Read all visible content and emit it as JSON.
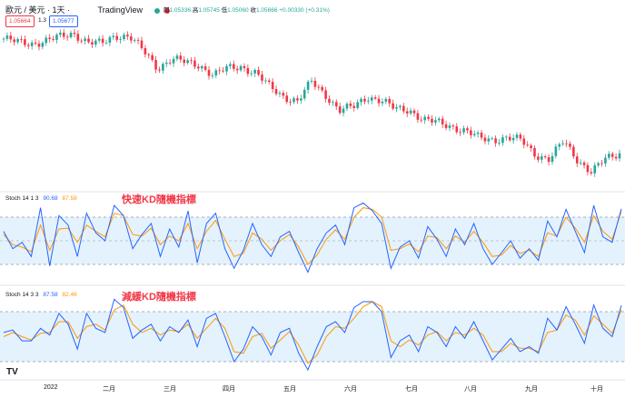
{
  "header": {
    "symbol": "歐元 / 美元 · 1天 ·",
    "brand": "TradingView",
    "ohlc": {
      "open_label": "開",
      "open": "1.05336",
      "high_label": "高",
      "high": "1.05745",
      "low_label": "低",
      "low": "1.05060",
      "close_label": "收",
      "close": "1.05666",
      "change": "+0.00330 (+0.31%)"
    },
    "sell_price": "1.05664",
    "spread": "1.3",
    "buy_price": "1.05677"
  },
  "fast_kd": {
    "label_name": "Stoch",
    "label_params": "14 1 3",
    "k_value": "90.68",
    "d_value": "87.58",
    "title": "快速KD隨機指標"
  },
  "slow_kd": {
    "label_name": "Stoch",
    "label_params": "14 3 3",
    "k_value": "87.58",
    "d_value": "82.46",
    "title": "減緩KD隨機指標"
  },
  "time_axis": [
    "2022",
    "二月",
    "三月",
    "四月",
    "五月",
    "六月",
    "七月",
    "八月",
    "九月",
    "十月"
  ],
  "colors": {
    "up": "#26a69a",
    "down": "#f23645",
    "k_line": "#2962ff",
    "d_line": "#ff9800",
    "band_fill": "#e3f2fd"
  },
  "chart_data": [
    {
      "type": "candlestick",
      "x": "trading days, 2022-01 to 2022-10",
      "close_trend": [
        1.137,
        1.132,
        1.131,
        1.134,
        1.139,
        1.145,
        1.132,
        1.13,
        1.142,
        1.14,
        1.12,
        1.098,
        1.11,
        1.105,
        1.102,
        1.088,
        1.097,
        1.1,
        1.091,
        1.072,
        1.06,
        1.053,
        1.079,
        1.062,
        1.041,
        1.045,
        1.06,
        1.054,
        1.042,
        1.042,
        1.028,
        1.024,
        1.02,
        1.013,
        1.003,
        1.002,
        1.004,
        1.0,
        0.982,
        0.975,
        0.999,
        0.975,
        0.958,
        0.975,
        0.984
      ],
      "last": {
        "open": 1.05336,
        "high": 1.05745,
        "low": 1.0506,
        "close": 1.05666
      }
    },
    {
      "type": "line",
      "title": "快速KD隨機指標",
      "ylim": [
        0,
        100
      ],
      "bands": [
        80,
        50,
        20
      ],
      "series": [
        {
          "name": "",
          "values": [
            62,
            40,
            48,
            30,
            92,
            18,
            82,
            70,
            30,
            85,
            60,
            50,
            95,
            82,
            40,
            58,
            72,
            30,
            65,
            42,
            88,
            22,
            72,
            85,
            40,
            15,
            38,
            72,
            45,
            30,
            55,
            62,
            35,
            10,
            40,
            60,
            70,
            45,
            92,
            98,
            88,
            72,
            15,
            42,
            50,
            28,
            68,
            52,
            30,
            65,
            45,
            72,
            40,
            20,
            35,
            50,
            28,
            40,
            25,
            75,
            55,
            90,
            62,
            35,
            95,
            55,
            48,
            90.68
          ]
        },
        {
          "name": "",
          "values": [
            58,
            45,
            42,
            36,
            70,
            38,
            65,
            66,
            48,
            70,
            62,
            55,
            85,
            82,
            58,
            56,
            66,
            45,
            56,
            50,
            72,
            40,
            62,
            76,
            52,
            30,
            34,
            60,
            52,
            38,
            50,
            58,
            42,
            20,
            32,
            52,
            64,
            52,
            80,
            92,
            90,
            80,
            38,
            40,
            46,
            36,
            56,
            54,
            40,
            56,
            48,
            62,
            48,
            30,
            32,
            44,
            34,
            38,
            30,
            60,
            56,
            80,
            66,
            48,
            82,
            62,
            52,
            87.58
          ]
        }
      ]
    },
    {
      "type": "line",
      "title": "減緩KD隨機指標",
      "ylim": [
        0,
        100
      ],
      "bands": [
        80,
        20
      ],
      "series": [
        {
          "name": "",
          "values": [
            55,
            58,
            45,
            45,
            60,
            52,
            78,
            65,
            35,
            78,
            60,
            55,
            95,
            85,
            48,
            58,
            65,
            45,
            62,
            55,
            70,
            38,
            72,
            78,
            50,
            20,
            35,
            62,
            50,
            28,
            55,
            60,
            30,
            10,
            38,
            62,
            68,
            55,
            85,
            92,
            92,
            80,
            25,
            45,
            52,
            32,
            62,
            55,
            38,
            62,
            48,
            68,
            45,
            22,
            35,
            48,
            32,
            38,
            30,
            72,
            58,
            86,
            65,
            42,
            88,
            60,
            50,
            87.58
          ]
        },
        {
          "name": "",
          "values": [
            50,
            55,
            50,
            46,
            54,
            55,
            68,
            68,
            48,
            62,
            65,
            58,
            82,
            88,
            65,
            55,
            60,
            52,
            58,
            56,
            65,
            48,
            60,
            72,
            60,
            32,
            30,
            50,
            54,
            36,
            46,
            56,
            40,
            18,
            28,
            50,
            62,
            60,
            72,
            86,
            92,
            86,
            45,
            38,
            46,
            40,
            52,
            56,
            45,
            55,
            52,
            60,
            52,
            32,
            32,
            42,
            36,
            36,
            32,
            55,
            58,
            76,
            70,
            52,
            75,
            65,
            54,
            82.46
          ]
        }
      ]
    }
  ]
}
